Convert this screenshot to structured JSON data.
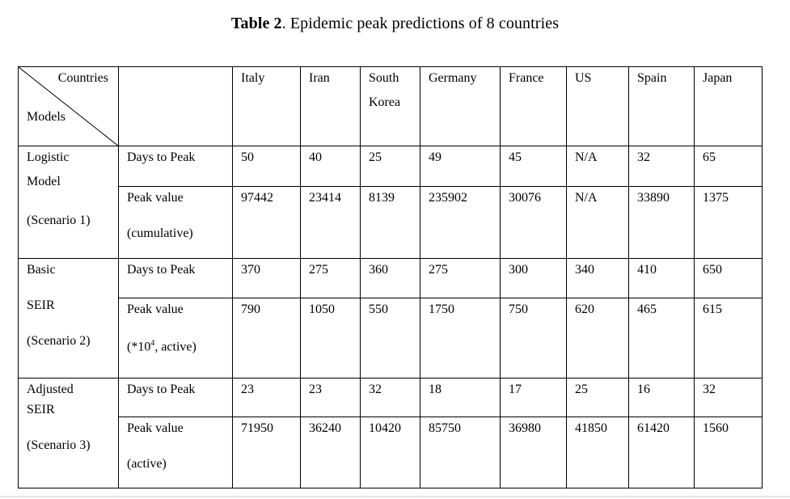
{
  "caption": {
    "label": "Table 2",
    "text": ". Epidemic peak predictions of 8 countries"
  },
  "header": {
    "countries_label": "Countries",
    "models_label": "Models",
    "countries": [
      {
        "line1": "Italy",
        "line2": ""
      },
      {
        "line1": "Iran",
        "line2": ""
      },
      {
        "line1": "South",
        "line2": "Korea"
      },
      {
        "line1": "Germany",
        "line2": ""
      },
      {
        "line1": "France",
        "line2": ""
      },
      {
        "line1": "US",
        "line2": ""
      },
      {
        "line1": "Spain",
        "line2": ""
      },
      {
        "line1": "Japan",
        "line2": ""
      }
    ]
  },
  "groups": [
    {
      "model_lines": [
        "Logistic",
        "Model",
        "(Scenario 1)"
      ],
      "rows": [
        {
          "label": "Days to Peak",
          "sublabel": "",
          "values": [
            "50",
            "40",
            "25",
            "49",
            "45",
            "N/A",
            "32",
            "65"
          ]
        },
        {
          "label": "Peak value",
          "sublabel": "(cumulative)",
          "values": [
            "97442",
            "23414",
            "8139",
            "235902",
            "30076",
            "N/A",
            "33890",
            "1375"
          ]
        }
      ]
    },
    {
      "model_lines": [
        "Basic",
        "SEIR",
        "(Scenario 2)"
      ],
      "rows": [
        {
          "label": "Days to Peak",
          "sublabel": "",
          "values": [
            "370",
            "275",
            "360",
            "275",
            "300",
            "340",
            "410",
            "650"
          ]
        },
        {
          "label": "Peak value",
          "sublabel_pre": "(*10",
          "sublabel_sup": "4",
          "sublabel_post": ", active)",
          "values": [
            "790",
            "1050",
            "550",
            "1750",
            "750",
            "620",
            "465",
            "615"
          ]
        }
      ]
    },
    {
      "model_lines": [
        "Adjusted",
        "SEIR",
        "(Scenario 3)"
      ],
      "rows": [
        {
          "label": "Days to Peak",
          "sublabel": "",
          "values": [
            "23",
            "23",
            "32",
            "18",
            "17",
            "25",
            "16",
            "32"
          ]
        },
        {
          "label": "Peak value",
          "sublabel": "(active)",
          "values": [
            "71950",
            "36240",
            "10420",
            "85750",
            "36980",
            "41850",
            "61420",
            "1560"
          ]
        }
      ]
    }
  ]
}
